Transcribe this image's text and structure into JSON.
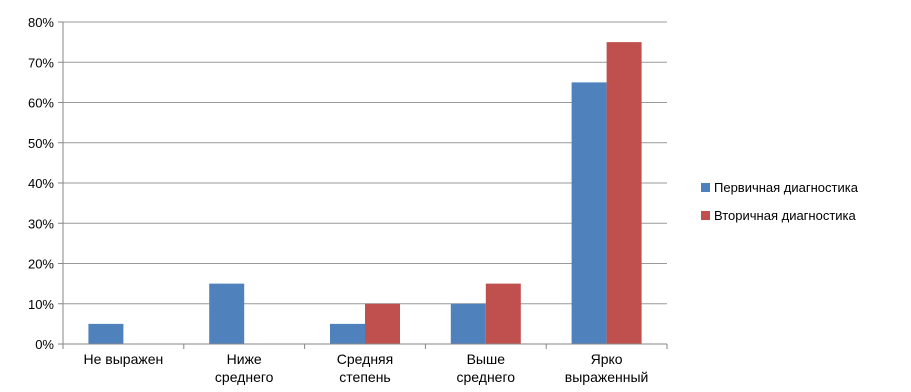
{
  "chart_data": {
    "type": "bar",
    "categories": [
      [
        "Не выражен"
      ],
      [
        "Ниже",
        "среднего"
      ],
      [
        "Средняя",
        "степень"
      ],
      [
        "Выше",
        "среднего"
      ],
      [
        "Ярко",
        "выраженный"
      ]
    ],
    "series": [
      {
        "name": "Первичная диагностика",
        "color": "#4f81bd",
        "values": [
          5,
          15,
          5,
          10,
          65
        ]
      },
      {
        "name": "Вторичная диагностика",
        "color": "#c0504d",
        "values": [
          0,
          0,
          10,
          15,
          75
        ]
      }
    ],
    "y_ticks": [
      "0%",
      "10%",
      "20%",
      "30%",
      "40%",
      "50%",
      "60%",
      "70%",
      "80%"
    ],
    "ylim": [
      0,
      80
    ],
    "y_unit": "%",
    "grid": true,
    "legend_position": "right"
  }
}
